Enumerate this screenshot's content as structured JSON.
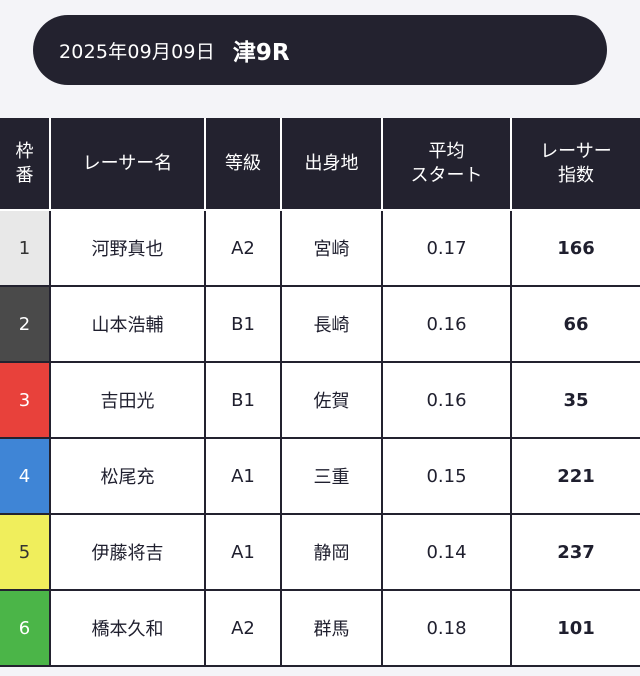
{
  "header": {
    "date": "2025年09月09日",
    "race": "津9R"
  },
  "columns": {
    "waku": [
      "枠",
      "番"
    ],
    "name": "レーサー名",
    "grade": "等級",
    "origin": "出身地",
    "avg_start": [
      "平均",
      "スタート"
    ],
    "racer_index": [
      "レーサー",
      "指数"
    ]
  },
  "waku_colors": [
    "#e8e8e8",
    "#4a4a4a",
    "#e8413b",
    "#3f85d6",
    "#f0ee5c",
    "#4bb548"
  ],
  "rows": [
    {
      "waku": "1",
      "name": "河野真也",
      "grade": "A2",
      "origin": "宮崎",
      "avg_start": "0.17",
      "index": "166"
    },
    {
      "waku": "2",
      "name": "山本浩輔",
      "grade": "B1",
      "origin": "長崎",
      "avg_start": "0.16",
      "index": "66"
    },
    {
      "waku": "3",
      "name": "吉田光",
      "grade": "B1",
      "origin": "佐賀",
      "avg_start": "0.16",
      "index": "35"
    },
    {
      "waku": "4",
      "name": "松尾充",
      "grade": "A1",
      "origin": "三重",
      "avg_start": "0.15",
      "index": "221"
    },
    {
      "waku": "5",
      "name": "伊藤将吉",
      "grade": "A1",
      "origin": "静岡",
      "avg_start": "0.14",
      "index": "237"
    },
    {
      "waku": "6",
      "name": "橋本久和",
      "grade": "A2",
      "origin": "群馬",
      "avg_start": "0.18",
      "index": "101"
    }
  ]
}
